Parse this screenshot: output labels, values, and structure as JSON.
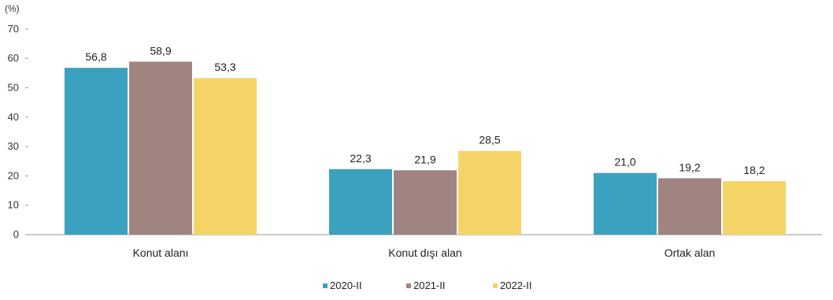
{
  "chart_data": {
    "type": "bar",
    "unit_label": "(%)",
    "categories": [
      "Konut alanı",
      "Konut dışı alan",
      "Ortak alan"
    ],
    "series": [
      {
        "name": "2020-II",
        "color": "#3aa2bf",
        "values": [
          56.8,
          22.3,
          21.0
        ]
      },
      {
        "name": "2021-II",
        "color": "#a08482",
        "values": [
          58.9,
          21.9,
          19.2
        ]
      },
      {
        "name": "2022-II",
        "color": "#f5d467",
        "values": [
          53.3,
          28.5,
          18.2
        ]
      }
    ],
    "value_labels": [
      [
        "56,8",
        "22,3",
        "21,0"
      ],
      [
        "58,9",
        "21,9",
        "19,2"
      ],
      [
        "53,3",
        "28,5",
        "18,2"
      ]
    ],
    "y_ticks": [
      "0",
      "10",
      "20",
      "30",
      "40",
      "50",
      "60",
      "70"
    ],
    "ylim": [
      0,
      70
    ],
    "grid": false,
    "legend_position": "bottom"
  }
}
